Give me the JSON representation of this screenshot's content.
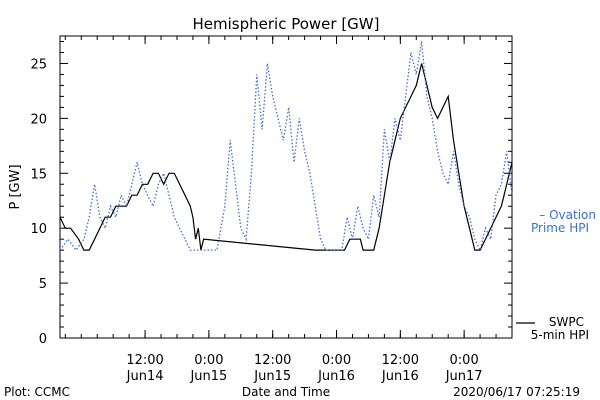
{
  "chart_data": {
    "type": "line",
    "title": "Hemispheric Power [GW]",
    "xlabel": "Date and Time",
    "ylabel": "P [GW]",
    "ylim": [
      0,
      27.5
    ],
    "yticks": [
      0,
      5,
      10,
      15,
      20,
      25
    ],
    "xlim": [
      "2020-06-13T20:00",
      "2020-06-17T09:00"
    ],
    "xticks": [
      {
        "t": "2020-06-14T12:00",
        "time": "12:00",
        "date": "Jun14"
      },
      {
        "t": "2020-06-15T00:00",
        "time": "0:00",
        "date": "Jun15"
      },
      {
        "t": "2020-06-15T12:00",
        "time": "12:00",
        "date": "Jun15"
      },
      {
        "t": "2020-06-16T00:00",
        "time": "0:00",
        "date": "Jun16"
      },
      {
        "t": "2020-06-16T12:00",
        "time": "12:00",
        "date": "Jun16"
      },
      {
        "t": "2020-06-17T00:00",
        "time": "0:00",
        "date": "Jun17"
      }
    ],
    "grid": false,
    "series": [
      {
        "name": "SWPC 5-min HPI",
        "legend_lines": [
          "SWPC",
          "5-min HPI"
        ],
        "color": "#000000",
        "style": "solid",
        "points": [
          [
            "2020-06-13T20:00",
            11
          ],
          [
            "2020-06-13T21:00",
            10
          ],
          [
            "2020-06-13T22:00",
            10
          ],
          [
            "2020-06-13T23:30",
            9
          ],
          [
            "2020-06-14T00:30",
            8
          ],
          [
            "2020-06-14T01:30",
            8
          ],
          [
            "2020-06-14T02:30",
            9
          ],
          [
            "2020-06-14T03:30",
            10
          ],
          [
            "2020-06-14T04:30",
            11
          ],
          [
            "2020-06-14T05:30",
            11
          ],
          [
            "2020-06-14T06:30",
            12
          ],
          [
            "2020-06-14T07:30",
            12
          ],
          [
            "2020-06-14T08:30",
            12
          ],
          [
            "2020-06-14T09:30",
            13
          ],
          [
            "2020-06-14T10:30",
            13
          ],
          [
            "2020-06-14T11:30",
            14
          ],
          [
            "2020-06-14T12:30",
            14
          ],
          [
            "2020-06-14T13:30",
            15
          ],
          [
            "2020-06-14T14:30",
            15
          ],
          [
            "2020-06-14T15:30",
            14
          ],
          [
            "2020-06-14T16:30",
            15
          ],
          [
            "2020-06-14T17:30",
            15
          ],
          [
            "2020-06-14T18:30",
            14
          ],
          [
            "2020-06-14T19:30",
            13
          ],
          [
            "2020-06-14T20:30",
            12
          ],
          [
            "2020-06-14T21:00",
            11
          ],
          [
            "2020-06-14T21:30",
            9
          ],
          [
            "2020-06-14T22:00",
            10
          ],
          [
            "2020-06-14T22:30",
            8
          ],
          [
            "2020-06-14T23:00",
            9
          ],
          [
            "2020-06-15T20:00",
            8
          ],
          [
            "2020-06-16T01:30",
            8
          ],
          [
            "2020-06-16T02:30",
            9
          ],
          [
            "2020-06-16T04:30",
            9
          ],
          [
            "2020-06-16T05:00",
            8
          ],
          [
            "2020-06-16T07:00",
            8
          ],
          [
            "2020-06-16T08:00",
            10
          ],
          [
            "2020-06-16T09:00",
            13
          ],
          [
            "2020-06-16T10:00",
            16
          ],
          [
            "2020-06-16T11:00",
            18
          ],
          [
            "2020-06-16T12:00",
            20
          ],
          [
            "2020-06-16T13:00",
            21
          ],
          [
            "2020-06-16T14:00",
            22
          ],
          [
            "2020-06-16T15:00",
            23
          ],
          [
            "2020-06-16T16:00",
            25
          ],
          [
            "2020-06-16T17:00",
            23
          ],
          [
            "2020-06-16T18:00",
            21
          ],
          [
            "2020-06-16T19:00",
            20
          ],
          [
            "2020-06-16T20:00",
            21
          ],
          [
            "2020-06-16T21:00",
            22
          ],
          [
            "2020-06-16T22:00",
            18
          ],
          [
            "2020-06-16T23:00",
            15
          ],
          [
            "2020-06-17T00:00",
            12
          ],
          [
            "2020-06-17T01:00",
            10
          ],
          [
            "2020-06-17T02:00",
            8
          ],
          [
            "2020-06-17T03:00",
            8
          ],
          [
            "2020-06-17T04:00",
            9
          ],
          [
            "2020-06-17T05:00",
            10
          ],
          [
            "2020-06-17T06:00",
            11
          ],
          [
            "2020-06-17T07:00",
            12
          ],
          [
            "2020-06-17T08:00",
            14
          ],
          [
            "2020-06-17T09:00",
            16
          ]
        ]
      },
      {
        "name": "Ovation Prime HPI",
        "legend_lines": [
          "– Ovation",
          "Prime HPI"
        ],
        "color": "#3a6fd8",
        "style": "dotted",
        "points": [
          [
            "2020-06-13T20:00",
            8
          ],
          [
            "2020-06-13T21:30",
            9
          ],
          [
            "2020-06-13T23:00",
            8
          ],
          [
            "2020-06-14T00:30",
            9
          ],
          [
            "2020-06-14T01:30",
            11
          ],
          [
            "2020-06-14T02:30",
            14
          ],
          [
            "2020-06-14T03:30",
            11
          ],
          [
            "2020-06-14T04:30",
            10
          ],
          [
            "2020-06-14T05:30",
            12
          ],
          [
            "2020-06-14T06:30",
            11
          ],
          [
            "2020-06-14T07:30",
            13
          ],
          [
            "2020-06-14T08:30",
            12
          ],
          [
            "2020-06-14T09:30",
            14
          ],
          [
            "2020-06-14T10:30",
            16
          ],
          [
            "2020-06-14T11:30",
            14
          ],
          [
            "2020-06-14T12:30",
            13
          ],
          [
            "2020-06-14T13:30",
            12
          ],
          [
            "2020-06-14T14:30",
            14
          ],
          [
            "2020-06-14T15:30",
            15
          ],
          [
            "2020-06-14T16:30",
            13
          ],
          [
            "2020-06-14T17:30",
            11
          ],
          [
            "2020-06-14T18:30",
            10
          ],
          [
            "2020-06-14T19:30",
            9
          ],
          [
            "2020-06-14T20:30",
            8
          ],
          [
            "2020-06-14T22:00",
            8
          ],
          [
            "2020-06-15T00:00",
            8
          ],
          [
            "2020-06-15T01:30",
            8
          ],
          [
            "2020-06-15T03:00",
            12
          ],
          [
            "2020-06-15T04:00",
            18
          ],
          [
            "2020-06-15T05:00",
            14
          ],
          [
            "2020-06-15T06:00",
            10
          ],
          [
            "2020-06-15T07:00",
            9
          ],
          [
            "2020-06-15T08:00",
            15
          ],
          [
            "2020-06-15T09:00",
            24
          ],
          [
            "2020-06-15T10:00",
            19
          ],
          [
            "2020-06-15T11:00",
            25
          ],
          [
            "2020-06-15T12:00",
            22
          ],
          [
            "2020-06-15T13:00",
            20
          ],
          [
            "2020-06-15T14:00",
            18
          ],
          [
            "2020-06-15T15:00",
            21
          ],
          [
            "2020-06-15T16:00",
            16
          ],
          [
            "2020-06-15T17:00",
            20
          ],
          [
            "2020-06-15T18:00",
            17
          ],
          [
            "2020-06-15T19:00",
            15
          ],
          [
            "2020-06-15T20:00",
            12
          ],
          [
            "2020-06-15T21:00",
            9
          ],
          [
            "2020-06-15T22:00",
            8
          ],
          [
            "2020-06-16T00:00",
            8
          ],
          [
            "2020-06-16T01:00",
            8
          ],
          [
            "2020-06-16T02:00",
            11
          ],
          [
            "2020-06-16T03:00",
            9
          ],
          [
            "2020-06-16T04:00",
            12
          ],
          [
            "2020-06-16T05:00",
            10
          ],
          [
            "2020-06-16T06:00",
            9
          ],
          [
            "2020-06-16T07:00",
            13
          ],
          [
            "2020-06-16T08:00",
            11
          ],
          [
            "2020-06-16T09:00",
            19
          ],
          [
            "2020-06-16T10:00",
            16
          ],
          [
            "2020-06-16T11:00",
            20
          ],
          [
            "2020-06-16T12:00",
            18
          ],
          [
            "2020-06-16T13:00",
            22
          ],
          [
            "2020-06-16T14:00",
            26
          ],
          [
            "2020-06-16T15:00",
            24
          ],
          [
            "2020-06-16T16:00",
            27
          ],
          [
            "2020-06-16T17:00",
            22
          ],
          [
            "2020-06-16T18:00",
            20
          ],
          [
            "2020-06-16T19:00",
            17
          ],
          [
            "2020-06-16T20:00",
            15
          ],
          [
            "2020-06-16T21:00",
            14
          ],
          [
            "2020-06-16T22:00",
            17
          ],
          [
            "2020-06-16T23:00",
            14
          ],
          [
            "2020-06-17T00:00",
            12
          ],
          [
            "2020-06-17T01:00",
            11
          ],
          [
            "2020-06-17T02:00",
            9
          ],
          [
            "2020-06-17T03:00",
            8
          ],
          [
            "2020-06-17T04:00",
            10
          ],
          [
            "2020-06-17T05:00",
            9
          ],
          [
            "2020-06-17T06:00",
            13
          ],
          [
            "2020-06-17T07:00",
            14
          ],
          [
            "2020-06-17T08:00",
            17
          ],
          [
            "2020-06-17T09:00",
            13
          ]
        ]
      }
    ]
  },
  "footer": {
    "credit": "Plot: CCMC",
    "timestamp": "2020/06/17 07:25:19"
  }
}
